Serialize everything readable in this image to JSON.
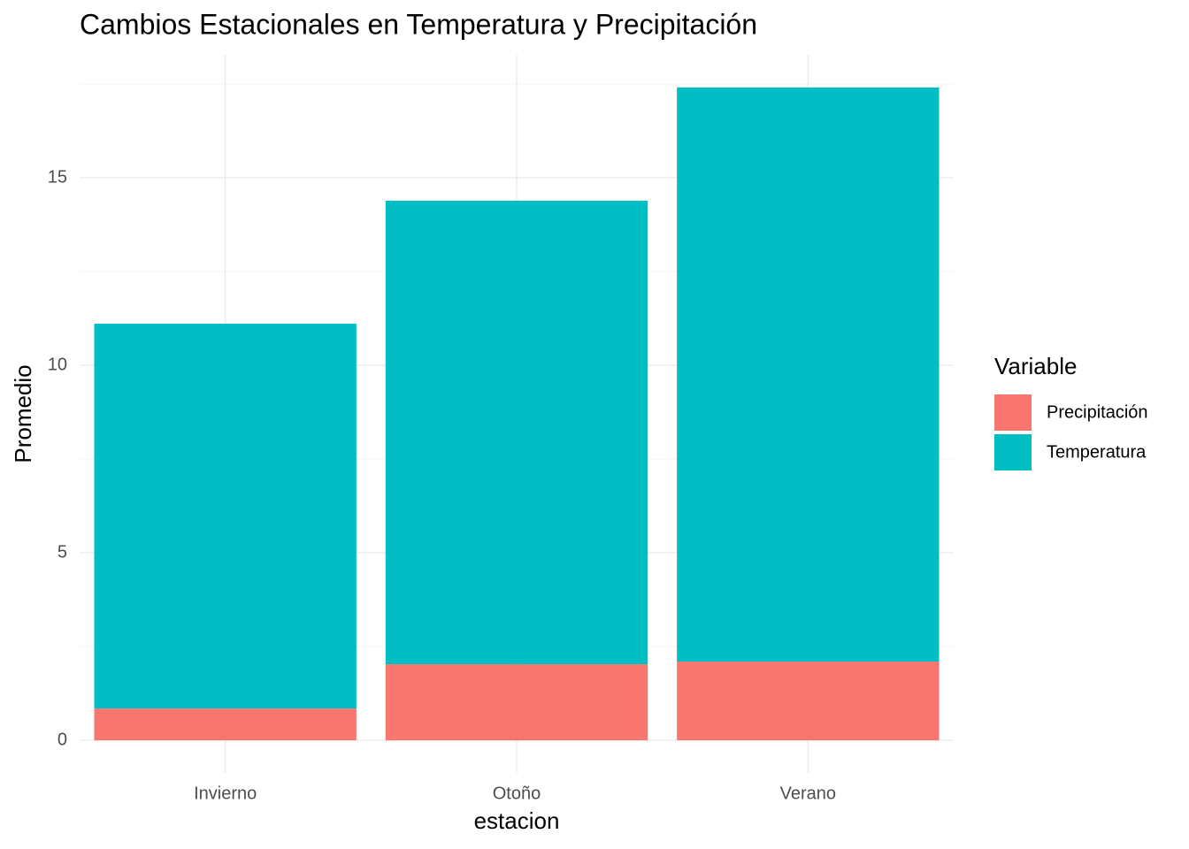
{
  "chart_data": {
    "type": "bar",
    "stacked": true,
    "title": "Cambios Estacionales en Temperatura y Precipitación",
    "x_label": "estacion",
    "y_label": "Promedio",
    "legend_title": "Variable",
    "categories": [
      "Invierno",
      "Otoño",
      "Verano"
    ],
    "series": [
      {
        "name": "Precipitación",
        "color": "#f8766d",
        "values": [
          0.85,
          2.03,
          2.1
        ]
      },
      {
        "name": "Temperatura",
        "color": "#00bfc4",
        "values": [
          10.26,
          12.36,
          15.31
        ]
      }
    ],
    "ylim": [
      -0.87,
      18.28
    ],
    "yticks": [
      0,
      5,
      10,
      15
    ],
    "grid": true,
    "legend_position": "right"
  }
}
